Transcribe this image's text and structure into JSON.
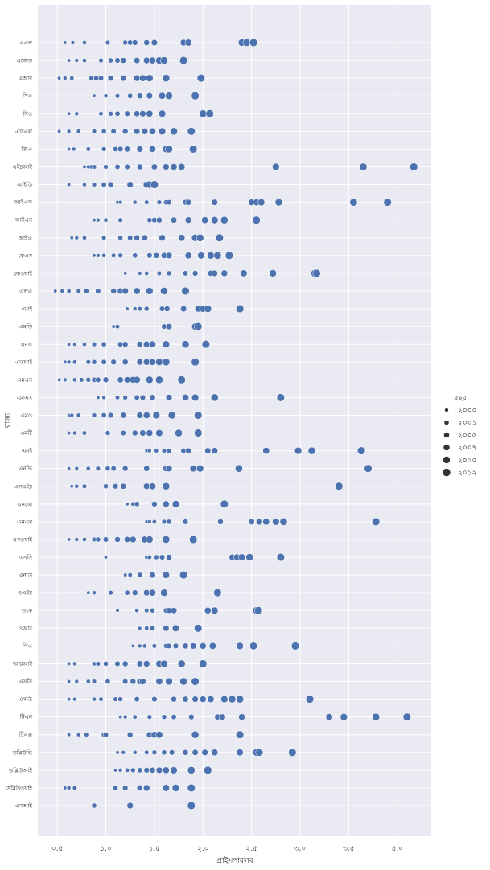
{
  "chart_data": {
    "type": "scatter",
    "xlabel": "প্রাইসপারলব",
    "ylabel": "রাজ্য",
    "xlim": [
      0.3,
      4.35
    ],
    "x_ticks": [
      0.5,
      1.0,
      1.5,
      2.0,
      2.5,
      3.0,
      3.5,
      4.0
    ],
    "x_tick_labels": [
      "০.৫",
      "১.০",
      "১.৫",
      "২.০",
      "২.৫",
      "৩.০",
      "৩.৫",
      "৪.০"
    ],
    "grid": true,
    "legend": {
      "title": "বছর",
      "position": "right",
      "entries": [
        {
          "label": "২০০০",
          "size_rank": 1
        },
        {
          "label": "২০০১",
          "size_rank": 2
        },
        {
          "label": "২০০৫",
          "size_rank": 3
        },
        {
          "label": "২০০৭",
          "size_rank": 4
        },
        {
          "label": "২০১০",
          "size_rank": 5
        },
        {
          "label": "২০১২",
          "size_rank": 6
        }
      ]
    },
    "point_color": "#4c72b0",
    "background_color": "#eaeaf2",
    "rows": [
      {
        "label": "এএল",
        "x": [
          0.58,
          0.66,
          0.78,
          1.02,
          1.2,
          1.25,
          1.3,
          1.42,
          1.5,
          1.8,
          1.85,
          2.4,
          2.45,
          2.52
        ]
      },
      {
        "label": "এজেড",
        "x": [
          0.62,
          0.7,
          0.78,
          0.95,
          1.05,
          1.12,
          1.18,
          1.32,
          1.42,
          1.48,
          1.55,
          1.6,
          1.8
        ]
      },
      {
        "label": "এআর",
        "x": [
          0.52,
          0.58,
          0.65,
          0.85,
          0.9,
          0.95,
          1.05,
          1.18,
          1.32,
          1.38,
          1.45,
          1.62,
          1.98
        ]
      },
      {
        "label": "সিএ",
        "x": [
          0.88,
          1.0,
          1.12,
          1.25,
          1.35,
          1.45,
          1.58,
          1.65,
          1.92
        ]
      },
      {
        "label": "সিও",
        "x": [
          0.62,
          0.7,
          0.95,
          1.05,
          1.12,
          1.22,
          1.32,
          1.38,
          1.45,
          1.58,
          2.0,
          2.07
        ]
      },
      {
        "label": "এফএল",
        "x": [
          0.52,
          0.62,
          0.72,
          0.88,
          0.98,
          1.08,
          1.2,
          1.32,
          1.4,
          1.48,
          1.58,
          1.7,
          1.88
        ]
      },
      {
        "label": "জিএ",
        "x": [
          0.62,
          0.67,
          0.82,
          0.98,
          1.1,
          1.15,
          1.22,
          1.35,
          1.48,
          1.62,
          1.65,
          1.9
        ]
      },
      {
        "label": "এইচআই",
        "x": [
          0.78,
          0.82,
          0.85,
          0.88,
          1.0,
          1.12,
          1.22,
          1.35,
          1.5,
          1.62,
          1.7,
          1.78,
          2.75,
          3.65,
          4.17
        ]
      },
      {
        "label": "আইডি",
        "x": [
          0.62,
          0.78,
          0.88,
          0.98,
          1.05,
          1.25,
          1.42,
          1.45,
          1.5
        ]
      },
      {
        "label": "আইএল",
        "x": [
          1.12,
          1.15,
          1.3,
          1.42,
          1.55,
          1.62,
          1.65,
          1.82,
          1.85,
          2.12,
          2.5,
          2.55,
          2.6,
          2.78,
          3.55,
          3.9
        ]
      },
      {
        "label": "আইএন",
        "x": [
          0.88,
          0.92,
          1.0,
          1.15,
          1.45,
          1.5,
          1.55,
          1.7,
          1.85,
          2.02,
          2.12,
          2.22,
          2.55
        ]
      },
      {
        "label": "আইএ",
        "x": [
          0.65,
          0.7,
          0.78,
          0.98,
          1.15,
          1.25,
          1.32,
          1.4,
          1.58,
          1.78,
          1.92,
          1.97,
          2.17
        ]
      },
      {
        "label": "কেএস",
        "x": [
          0.88,
          0.92,
          0.98,
          1.08,
          1.15,
          1.3,
          1.45,
          1.52,
          1.6,
          1.65,
          1.85,
          1.98,
          2.08,
          2.15,
          2.27
        ]
      },
      {
        "label": "কেওয়াই",
        "x": [
          1.2,
          1.35,
          1.42,
          1.55,
          1.65,
          1.82,
          1.92,
          2.08,
          2.12,
          2.22,
          2.42,
          2.72,
          3.15,
          3.17
        ]
      },
      {
        "label": "এলএ",
        "x": [
          0.48,
          0.55,
          0.62,
          0.72,
          0.8,
          0.92,
          1.08,
          1.15,
          1.2,
          1.32,
          1.45,
          1.6,
          1.82
        ]
      },
      {
        "label": "এমই",
        "x": [
          1.22,
          1.3,
          1.35,
          1.42,
          1.58,
          1.63,
          1.8,
          1.95,
          2.0,
          2.05,
          2.38
        ]
      },
      {
        "label": "এমডি",
        "x": [
          1.08,
          1.12,
          1.6,
          1.65,
          1.92,
          1.95
        ]
      },
      {
        "label": "এমএ",
        "x": [
          0.62,
          0.68,
          0.78,
          0.88,
          0.98,
          1.15,
          1.2,
          1.35,
          1.42,
          1.48,
          1.62,
          1.82,
          2.03
        ]
      },
      {
        "label": "এমআই",
        "x": [
          0.58,
          0.62,
          0.68,
          0.82,
          0.88,
          0.98,
          1.08,
          1.2,
          1.35,
          1.42,
          1.48,
          1.55,
          1.62,
          1.92
        ]
      },
      {
        "label": "এমএন",
        "x": [
          0.52,
          0.58,
          0.68,
          0.75,
          0.82,
          0.88,
          0.92,
          1.0,
          1.15,
          1.22,
          1.28,
          1.32,
          1.45,
          1.55,
          1.78
        ]
      },
      {
        "label": "এমএস",
        "x": [
          0.92,
          0.98,
          1.12,
          1.2,
          1.32,
          1.38,
          1.48,
          1.65,
          1.82,
          1.92,
          2.12,
          2.8
        ]
      },
      {
        "label": "এমও",
        "x": [
          0.62,
          0.65,
          0.72,
          0.88,
          0.98,
          1.05,
          1.18,
          1.35,
          1.42,
          1.52,
          1.68,
          1.95
        ]
      },
      {
        "label": "এমটি",
        "x": [
          0.62,
          0.68,
          0.78,
          1.02,
          1.18,
          1.3,
          1.38,
          1.45,
          1.55,
          1.75,
          1.95
        ]
      },
      {
        "label": "এনই",
        "x": [
          1.42,
          1.45,
          1.52,
          1.6,
          1.65,
          1.8,
          1.85,
          2.05,
          2.12,
          2.65,
          2.98,
          3.12,
          3.63
        ]
      },
      {
        "label": "এনভি",
        "x": [
          0.62,
          0.7,
          0.82,
          0.92,
          1.02,
          1.08,
          1.2,
          1.42,
          1.62,
          1.65,
          1.9,
          1.97,
          2.37,
          3.7
        ]
      },
      {
        "label": "এনএইচ",
        "x": [
          0.65,
          0.7,
          0.78,
          1.0,
          1.1,
          1.18,
          1.42,
          1.48,
          1.62,
          3.4
        ]
      },
      {
        "label": "এনজে",
        "x": [
          1.22,
          1.28,
          1.32,
          1.5,
          1.62,
          1.72,
          2.22
        ]
      },
      {
        "label": "এনএম",
        "x": [
          1.42,
          1.45,
          1.5,
          1.6,
          1.65,
          1.82,
          2.18,
          2.5,
          2.58,
          2.65,
          2.75,
          2.83,
          3.78
        ]
      },
      {
        "label": "এনওয়াই",
        "x": [
          0.62,
          0.7,
          0.78,
          0.88,
          0.92,
          1.0,
          1.12,
          1.22,
          1.28,
          1.4,
          1.45,
          1.62,
          1.9
        ]
      },
      {
        "label": "এনসি",
        "x": [
          1.0,
          1.42,
          1.45,
          1.52,
          1.58,
          1.65,
          2.3,
          2.35,
          2.4,
          2.48,
          2.8
        ]
      },
      {
        "label": "এনডি",
        "x": [
          1.2,
          1.25,
          1.35,
          1.48,
          1.62,
          1.8
        ]
      },
      {
        "label": "ওএইচ",
        "x": [
          0.82,
          0.88,
          1.05,
          1.22,
          1.3,
          1.42,
          1.48,
          1.6,
          2.15
        ]
      },
      {
        "label": "ওকে",
        "x": [
          1.12,
          1.32,
          1.42,
          1.48,
          1.62,
          1.65,
          1.7,
          2.05,
          2.12,
          2.55,
          2.57
        ]
      },
      {
        "label": "ওআর",
        "x": [
          1.35,
          1.42,
          1.48,
          1.62,
          1.72,
          1.95
        ]
      },
      {
        "label": "পিএ",
        "x": [
          1.28,
          1.35,
          1.4,
          1.5,
          1.62,
          1.65,
          1.72,
          1.82,
          1.9,
          2.0,
          2.1,
          2.38,
          2.52,
          2.95
        ]
      },
      {
        "label": "আরআই",
        "x": [
          0.62,
          0.68,
          0.88,
          0.92,
          1.0,
          1.12,
          1.2,
          1.35,
          1.42,
          1.55,
          1.6,
          1.78,
          2.0
        ]
      },
      {
        "label": "এসসি",
        "x": [
          0.62,
          0.7,
          0.82,
          0.88,
          1.02,
          1.2,
          1.28,
          1.35,
          1.38,
          1.55,
          1.65,
          1.8,
          1.92
        ]
      },
      {
        "label": "এসডি",
        "x": [
          0.62,
          0.68,
          0.88,
          0.95,
          1.1,
          1.15,
          1.32,
          1.5,
          1.7,
          1.82,
          1.92,
          2.0,
          2.08,
          2.22,
          2.3,
          2.38,
          3.1
        ]
      },
      {
        "label": "টিএন",
        "x": [
          1.15,
          1.2,
          1.3,
          1.45,
          1.6,
          1.7,
          1.88,
          2.15,
          2.2,
          2.4,
          3.3,
          3.45,
          3.78,
          4.1
        ]
      },
      {
        "label": "টিএক্স",
        "x": [
          0.62,
          0.72,
          0.8,
          0.98,
          1.0,
          1.25,
          1.45,
          1.5,
          1.55,
          1.92,
          2.38
        ]
      },
      {
        "label": "ডব্লিউভি",
        "x": [
          1.12,
          1.18,
          1.3,
          1.42,
          1.5,
          1.6,
          1.68,
          1.82,
          1.92,
          2.02,
          2.12,
          2.38,
          2.55,
          2.58,
          2.92
        ]
      },
      {
        "label": "ডব্লিউআই",
        "x": [
          1.1,
          1.15,
          1.22,
          1.28,
          1.35,
          1.42,
          1.48,
          1.55,
          1.62,
          1.7,
          1.88,
          2.05
        ]
      },
      {
        "label": "ডব্লিউওয়াই",
        "x": [
          0.58,
          0.62,
          0.68,
          1.1,
          1.2,
          1.35,
          1.42,
          1.62,
          1.72,
          1.88
        ]
      },
      {
        "label": "এনআই",
        "x": [
          0.87,
          0.88,
          1.25,
          1.88
        ]
      }
    ]
  }
}
